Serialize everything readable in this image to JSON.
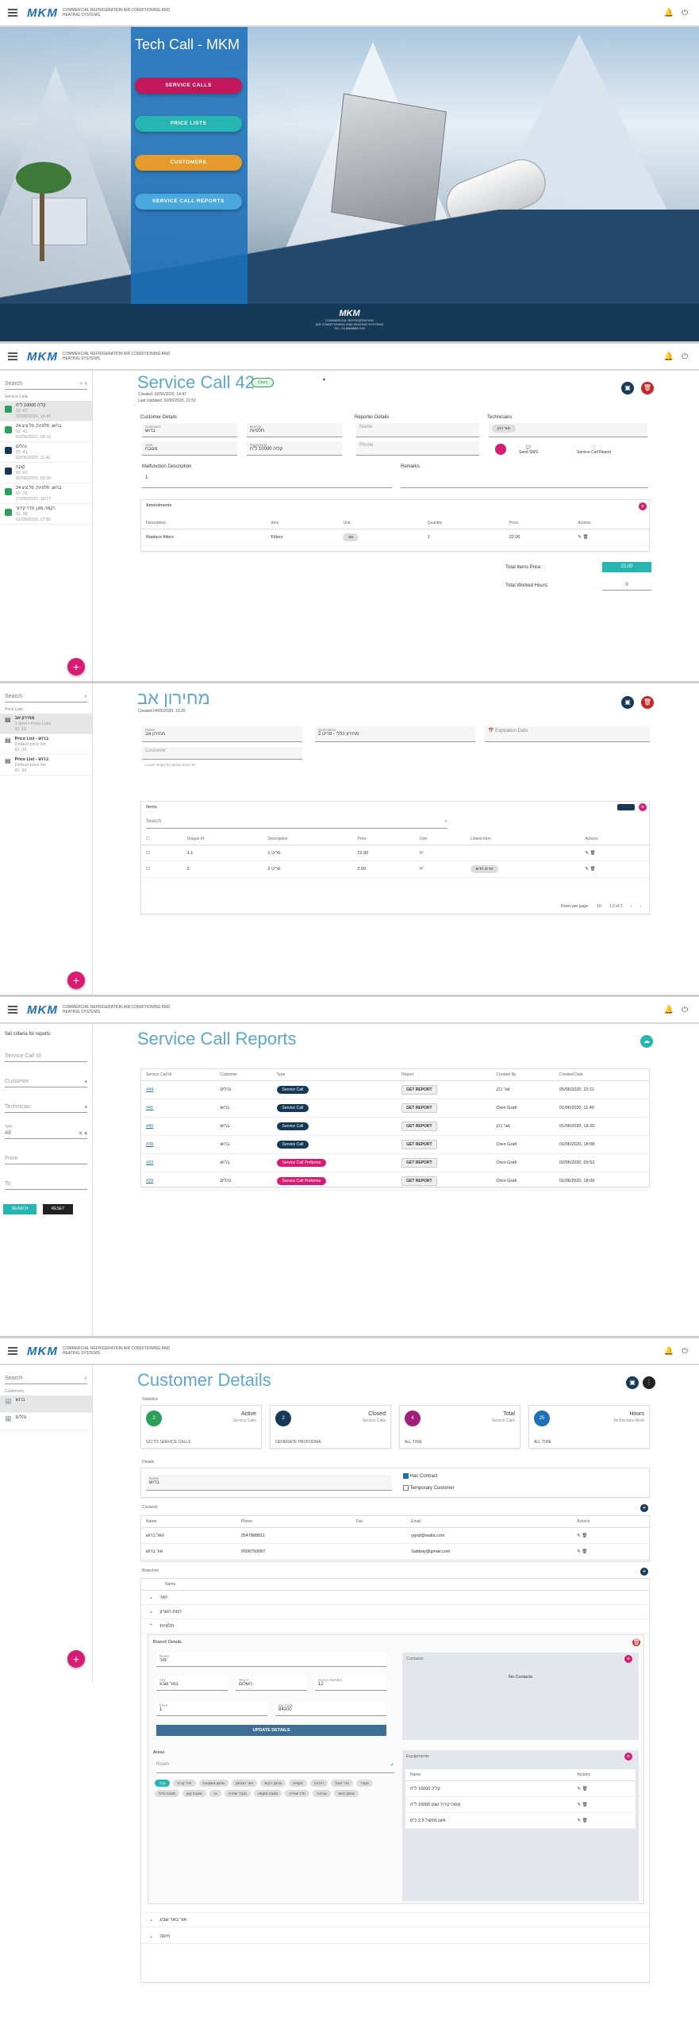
{
  "app": {
    "logo": "MKM",
    "tagline": "COMMERCIAL REFRIGERATION AIR CONDITIONING AND HEATING SYSTEMS"
  },
  "home": {
    "title": "Tech Call - MKM",
    "buttons": [
      "SERVICE CALLS",
      "PRICE LISTS",
      "CUSTOMERS",
      "SERVICE CALL REPORTS"
    ],
    "footer_lines": [
      "MKM",
      "COMMERCIAL REFRIGERATION",
      "AIR CONDITIONING AND HEATING SYSTEMS",
      "TEL: 04-8888888 FAX"
    ]
  },
  "sc": {
    "search": "Search",
    "caption": "Service Calls",
    "list": [
      {
        "t": "קליה 10000 ל\"ח",
        "s": "ID: 42",
        "d": "02/06/2020, 14:47",
        "c": "#2e9e5b"
      },
      {
        "t": "ברוש, תלפיות, פל ציצ 24",
        "s": "ID: 41",
        "d": "02/06/2020, 09:16",
        "c": "#2e9e5b"
      },
      {
        "t": "נהלים",
        "s": "ID: 41",
        "d": "02/06/2020, 11:41",
        "c": "#163957"
      },
      {
        "t": "קוקה",
        "s": "ID: 40",
        "d": "02/06/2020, 20:20",
        "c": "#163957"
      },
      {
        "t": "ברוש, תלפיות, פל ציצ 24",
        "s": "ID: 39",
        "d": "27/05/2020, 10:17",
        "c": "#2e9e5b"
      },
      {
        "t": "רקמה מזון, חדר קירור",
        "s": "ID: 38",
        "d": "01/05/2020, 17:50",
        "c": "#2e9e5b"
      }
    ],
    "title": "Service Call 42",
    "status": "Open",
    "created": "Created: 02/06/2020, 14:47",
    "updated": "Last Updated: 02/06/2020, 21:51",
    "customer_details": "Customer Details",
    "reporter_details": "Reporter Details",
    "technicians": "Technicians",
    "customer_label": "Customer",
    "customer_val": "ברוש",
    "branch_label": "Branch",
    "branch_val": "תלפיות",
    "area_label": "Area",
    "area_val": "מטבח",
    "equip_label": "Equipment",
    "equip_val": "קליה 10000 ל\"ח",
    "name_ph": "Name",
    "phone_ph": "Phone",
    "tech_chip": "אור כהן",
    "send_sms": "Send SMS",
    "report_lbl": "Service Call Report",
    "malf_label": "Malfunction Description",
    "malf_val": "1",
    "remarks_label": "Remarks",
    "amend": "Amendments",
    "amend_cols": [
      "Description",
      "Item",
      "Unit",
      "Quantity",
      "Price",
      "Actions"
    ],
    "amend_row": [
      "Replace filters",
      "Filters",
      "ea",
      "1",
      "22.00"
    ],
    "total_price_lbl": "Total Items Price:",
    "total_price": "22.00",
    "total_hours_lbl": "Total Worked Hours:",
    "total_hours": "0"
  },
  "pl": {
    "search": "Search",
    "caption": "Price Lists",
    "list": [
      {
        "t": "מחירון אב",
        "s": "1 Item • Price Lists",
        "d": "ID: 10"
      },
      {
        "t": "Price List - ברוש",
        "s": "Default price list",
        "d": "ID: 24"
      },
      {
        "t": "Price List - ברוש",
        "s": "Default price list",
        "d": "ID: 30"
      }
    ],
    "title": "מחירון אב",
    "created": "Created 04/05/2020, 13:20",
    "name_label": "Name",
    "name_val": "מחירון אב",
    "desc_label": "Description",
    "desc_val": "מחירון כללי - פריט 2",
    "exp_ph": "Expiration Date",
    "cust_ph": "Customer",
    "cust_hint": "Leave empty for global price list",
    "items": "Items",
    "search_ph": "Search",
    "cols": [
      "Unique Id",
      "Description",
      "Price",
      "Unit",
      "Linked Item",
      "Actions"
    ],
    "rows": [
      [
        "1.1",
        "1 פריט",
        "22.00",
        "ח'",
        ""
      ],
      [
        "2",
        "2 פריט",
        "2.00",
        "ח'",
        "פריט חדש"
      ]
    ],
    "rpp": "Rows per page:",
    "rpp_val": "10",
    "range": "1-2 of 2"
  },
  "rep": {
    "criteria": "Set criteria for reports",
    "f_id": "Service Call Id",
    "f_cust": "Customer",
    "f_tech": "Technician",
    "f_type_lbl": "Type",
    "f_type": "All",
    "f_from": "From",
    "f_to": "To",
    "search_btn": "SEARCH",
    "reset_btn": "RESET",
    "title": "Service Call Reports",
    "cols": [
      "Service Call Id",
      "Customer",
      "Type",
      "Report",
      "Created By",
      "Created Date"
    ],
    "rows": [
      [
        "#44",
        "נהלים",
        "Service Call",
        "GET REPORT",
        "אור כהן",
        "05/06/2020, 22:11",
        "#163957"
      ],
      [
        "#41",
        "ברוש",
        "Service Call",
        "GET REPORT",
        "Oren Grafi",
        "01/06/2020, 11:40",
        "#163957"
      ],
      [
        "#40",
        "ברוש",
        "Service Call",
        "GET REPORT",
        "אור כהן",
        "01/06/2020, 18:20",
        "#163957"
      ],
      [
        "#39",
        "ברוש",
        "Service Call",
        "GET REPORT",
        "Oren Grafi",
        "01/06/2020, 18:08",
        "#163957"
      ],
      [
        "#33",
        "ברוש",
        "Service Call Proforma",
        "GET REPORT",
        "Oren Grafi",
        "02/06/2020, 00:53",
        "#d81b75"
      ],
      [
        "#29",
        "נהלים",
        "Service Call Proforma",
        "GET REPORT",
        "Oren Grafi",
        "01/06/2020, 18:09",
        "#d81b75"
      ]
    ]
  },
  "cust": {
    "search": "Search",
    "caption": "Customers",
    "list": [
      "ברוש",
      "נהלים"
    ],
    "title": "Customer Details",
    "statistics": "Statistics",
    "stats": [
      {
        "n": "2",
        "big": "Active",
        "sm": "Service Calls",
        "l": "GO TO SERVICE CALLS",
        "c": "#2e9e5b"
      },
      {
        "n": "2",
        "big": "Closed",
        "sm": "Service Calls",
        "l": "GENERATE PROFORMA",
        "c": "#163957"
      },
      {
        "n": "4",
        "big": "Total",
        "sm": "Service Calls",
        "l": "ALL TIME",
        "c": "#a1207f"
      },
      {
        "n": "25",
        "big": "Hours",
        "sm": "Technicians Work",
        "l": "ALL TIME",
        "c": "#1d6fb8"
      }
    ],
    "details": "Details",
    "name_label": "Name",
    "name_val": "ברוש",
    "chk1": "Has Contract",
    "chk2": "Temporary Customer",
    "contacts": "Contacts",
    "ccols": [
      "Name",
      "Phone",
      "Fax",
      "Email",
      "Actions"
    ],
    "crows": [
      [
        "יגאל ברוש",
        "0547888811",
        "",
        "ygraf@walla.com"
      ],
      [
        "אור ברוש",
        "0508750087",
        "",
        "Sabbay@gmail.com"
      ]
    ],
    "branches": "Branches",
    "bname": "Name",
    "blist": [
      "יפור",
      "רמת השרון",
      "תלפיות"
    ],
    "bd": "Branch Details",
    "bd_name_l": "Name",
    "bd_name": "יפור",
    "city_l": "City",
    "city": "באר שבע",
    "street_l": "Street",
    "street": "השלום",
    "house_l": "House Number",
    "house": "12",
    "floor_l": "Floor",
    "floor": "1",
    "zip_l": "Zip Code",
    "zip": "84100",
    "upd": "UPDATE DETAILS",
    "bcontacts": "Contacts",
    "no_contacts": "No Contacts",
    "areas": "Areas",
    "areas_ph": "Room",
    "area_sel": "קולר",
    "area_chips": [
      "חדר קירור",
      "מחסן משקאות",
      "אזור המחסן",
      "מחסן ירקות",
      "מקפיא",
      "ריזרבה",
      "חדר אוכל",
      "מקרר",
      "מטבח גדול",
      "מטבח קטן",
      "בר",
      "מקרר שתייה",
      "מטבח מוקפא",
      "חדר שתייה",
      "גנרטור",
      "מחסן ראשי"
    ],
    "equip": "Equipments",
    "ecols": [
      "Name",
      "Actions"
    ],
    "erows": [
      "קליה 10000 ל\"ח",
      "מפוח קירור שמן 15000 ל\"ח",
      "מזגן מפוצל 2.5 כ\"ס"
    ],
    "more_branches": [
      "אור באר שבע",
      "חיפה"
    ]
  }
}
